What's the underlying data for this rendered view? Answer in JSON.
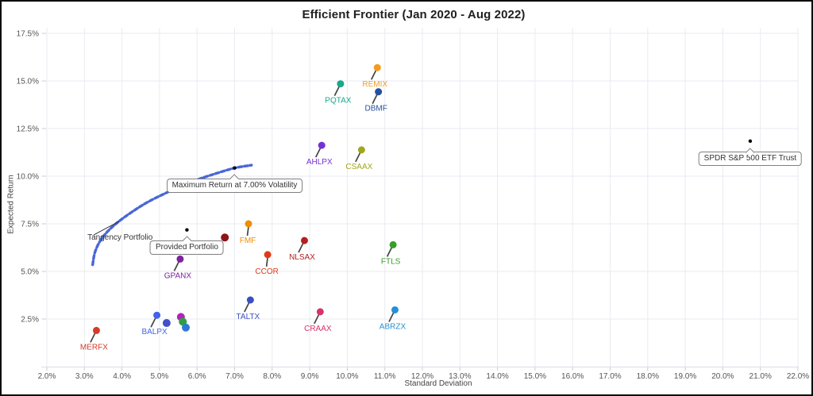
{
  "title": "Efficient Frontier (Jan 2020 - Aug 2022)",
  "chart_data": {
    "type": "scatter",
    "title": "Efficient Frontier (Jan 2020 - Aug 2022)",
    "xlabel": "Standard Deviation",
    "ylabel": "Expected Return",
    "xlim": [
      2,
      22
    ],
    "ylim": [
      0,
      17.8
    ],
    "grid": true,
    "legend": "none",
    "x_tick_values": [
      2,
      3,
      4,
      5,
      6,
      7,
      8,
      9,
      10,
      11,
      12,
      13,
      14,
      15,
      16,
      17,
      18,
      19,
      20,
      21,
      22
    ],
    "x_tick_labels": [
      "2.0%",
      "3.0%",
      "4.0%",
      "5.0%",
      "6.0%",
      "7.0%",
      "8.0%",
      "9.0%",
      "10.0%",
      "11.0%",
      "12.0%",
      "13.0%",
      "14.0%",
      "15.0%",
      "16.0%",
      "17.0%",
      "18.0%",
      "19.0%",
      "20.0%",
      "21.0%",
      "22.0%"
    ],
    "y_tick_values": [
      2.5,
      5,
      7.5,
      10,
      12.5,
      15,
      17.5
    ],
    "y_tick_labels": [
      "2.5%",
      "5.0%",
      "7.5%",
      "10.0%",
      "12.5%",
      "15.0%",
      "17.5%"
    ],
    "funds": [
      {
        "label": "MERFX",
        "x": 3.32,
        "y": 1.9,
        "color": "#d63b2a",
        "tail": "dl"
      },
      {
        "label": "BALPX",
        "x": 4.93,
        "y": 2.7,
        "color": "#4263eb",
        "tail": "dl"
      },
      {
        "label": "GPANX",
        "x": 5.55,
        "y": 5.65,
        "color": "#7e22a0",
        "tail": "dl"
      },
      {
        "label": "TALTX",
        "x": 7.42,
        "y": 3.5,
        "color": "#3b4fc0",
        "tail": "dl"
      },
      {
        "label": "CRAAX",
        "x": 9.28,
        "y": 2.88,
        "color": "#d6336c",
        "tail": "dl"
      },
      {
        "label": "ABRZX",
        "x": 11.27,
        "y": 2.98,
        "color": "#2590d8",
        "tail": "dl"
      },
      {
        "label": "FTLS",
        "x": 11.22,
        "y": 6.4,
        "color": "#35a025",
        "tail": "dl"
      },
      {
        "label": "CCOR",
        "x": 7.88,
        "y": 5.88,
        "color": "#e03a17",
        "tail": "d"
      },
      {
        "label": "NLSAX",
        "x": 8.86,
        "y": 6.62,
        "color": "#b42020",
        "tail": "dl"
      },
      {
        "label": "FMF",
        "x": 7.37,
        "y": 7.5,
        "color": "#ef8e00",
        "tail": "d"
      },
      {
        "label": "AHLPX",
        "x": 9.32,
        "y": 11.62,
        "color": "#7332d6",
        "tail": "dl"
      },
      {
        "label": "CSAAX",
        "x": 10.38,
        "y": 11.38,
        "color": "#a2a61f",
        "tail": "dl"
      },
      {
        "label": "PQTAX",
        "x": 9.82,
        "y": 14.85,
        "color": "#18a88c",
        "tail": "dl"
      },
      {
        "label": "REMIX",
        "x": 10.8,
        "y": 15.7,
        "color": "#f39c1d",
        "tail": "dl"
      },
      {
        "label": "DBMF",
        "x": 10.83,
        "y": 14.43,
        "color": "#25509e",
        "tail": "dl"
      }
    ],
    "unlabeled_points": [
      {
        "x": 5.19,
        "y": 2.29,
        "color": "#4450c8"
      },
      {
        "x": 5.57,
        "y": 2.61,
        "color": "#b224b8"
      },
      {
        "x": 5.62,
        "y": 2.36,
        "color": "#2f9e44"
      },
      {
        "x": 5.7,
        "y": 2.05,
        "color": "#2e7ad1"
      },
      {
        "x": 6.74,
        "y": 6.78,
        "color": "#8c1515"
      }
    ],
    "frontier_curve": {
      "color": "#3f5ed6",
      "points": [
        [
          3.22,
          5.35
        ],
        [
          3.28,
          6.0
        ],
        [
          3.42,
          6.6
        ],
        [
          3.62,
          7.1
        ],
        [
          3.9,
          7.6
        ],
        [
          4.25,
          8.1
        ],
        [
          4.65,
          8.6
        ],
        [
          5.1,
          9.05
        ],
        [
          5.6,
          9.5
        ],
        [
          6.1,
          9.88
        ],
        [
          6.6,
          10.2
        ],
        [
          7.0,
          10.43
        ],
        [
          7.45,
          10.58
        ]
      ]
    },
    "annotations": [
      {
        "id": "max-return",
        "text": "Maximum Return at 7.00% Volatility",
        "x": 7.0,
        "y": 10.43,
        "style": "box"
      },
      {
        "id": "provided-portfolio",
        "text": "Provided Portfolio",
        "x": 5.73,
        "y": 7.18,
        "style": "box"
      },
      {
        "id": "spdr",
        "text": "SPDR S&P 500 ETF Trust",
        "x": 20.73,
        "y": 11.84,
        "style": "box"
      },
      {
        "id": "tangency",
        "text": "Tangency Portfolio",
        "x": 3.95,
        "y": 7.65,
        "style": "text"
      }
    ]
  }
}
